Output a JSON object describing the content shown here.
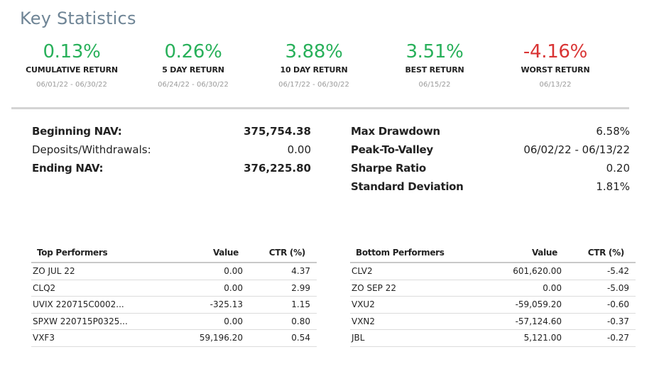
{
  "title": "Key Statistics",
  "colors": {
    "positive": "#28b05a",
    "negative": "#d93434",
    "title": "#6f8596"
  },
  "stats": [
    {
      "value": "0.13%",
      "label": "CUMULATIVE RETURN",
      "range": "06/01/22 - 06/30/22",
      "tone": "positive"
    },
    {
      "value": "0.26%",
      "label": "5 DAY RETURN",
      "range": "06/24/22 - 06/30/22",
      "tone": "positive"
    },
    {
      "value": "3.88%",
      "label": "10 DAY RETURN",
      "range": "06/17/22 - 06/30/22",
      "tone": "positive"
    },
    {
      "value": "3.51%",
      "label": "BEST RETURN",
      "range": "06/15/22",
      "tone": "positive"
    },
    {
      "value": "-4.16%",
      "label": "WORST RETURN",
      "range": "06/13/22",
      "tone": "negative"
    }
  ],
  "nav": [
    {
      "label": "Beginning NAV:",
      "value": "375,754.38",
      "bold": true
    },
    {
      "label": "Deposits/Withdrawals:",
      "value": "0.00",
      "bold": false
    },
    {
      "label": "Ending NAV:",
      "value": "376,225.80",
      "bold": true
    }
  ],
  "risk": [
    {
      "label": "Max Drawdown",
      "value": "6.58%"
    },
    {
      "label": "Peak-To-Valley",
      "value": "06/02/22 - 06/13/22"
    },
    {
      "label": "Sharpe Ratio",
      "value": "0.20"
    },
    {
      "label": "Standard Deviation",
      "value": "1.81%"
    }
  ],
  "top_performers": {
    "headers": {
      "name": "Top Performers",
      "value": "Value",
      "ctr": "CTR (%)"
    },
    "rows": [
      {
        "name": "ZO   JUL 22",
        "value": "0.00",
        "ctr": "4.37"
      },
      {
        "name": "CLQ2",
        "value": "0.00",
        "ctr": "2.99"
      },
      {
        "name": "UVIX  220715C0002...",
        "value": "-325.13",
        "ctr": "1.15"
      },
      {
        "name": "SPXW  220715P0325...",
        "value": "0.00",
        "ctr": "0.80"
      },
      {
        "name": "VXF3",
        "value": "59,196.20",
        "ctr": "0.54"
      }
    ]
  },
  "bottom_performers": {
    "headers": {
      "name": "Bottom Performers",
      "value": "Value",
      "ctr": "CTR (%)"
    },
    "rows": [
      {
        "name": "CLV2",
        "value": "601,620.00",
        "ctr": "-5.42"
      },
      {
        "name": "ZO   SEP 22",
        "value": "0.00",
        "ctr": "-5.09"
      },
      {
        "name": "VXU2",
        "value": "-59,059.20",
        "ctr": "-0.60"
      },
      {
        "name": "VXN2",
        "value": "-57,124.60",
        "ctr": "-0.37"
      },
      {
        "name": "JBL",
        "value": "5,121.00",
        "ctr": "-0.27"
      }
    ]
  }
}
